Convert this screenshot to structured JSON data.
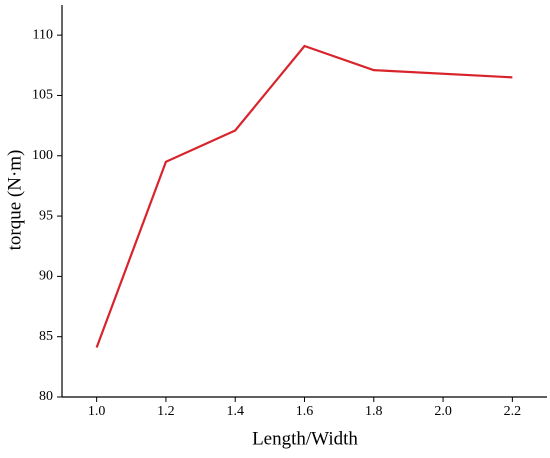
{
  "chart_data": {
    "type": "line",
    "x_label": "Length/Width",
    "y_label": "torque (N·m)",
    "x": [
      1.0,
      1.2,
      1.4,
      1.6,
      1.8,
      2.2
    ],
    "series": [
      {
        "color": "#d9232b",
        "values": [
          84.1,
          99.5,
          102.1,
          109.1,
          107.1,
          106.5
        ]
      }
    ],
    "xlim": [
      0.9,
      2.3
    ],
    "xticks": [
      {
        "value": 1.0,
        "label": "1.0"
      },
      {
        "value": 1.2,
        "label": "1.2"
      },
      {
        "value": 1.4,
        "label": "1.4"
      },
      {
        "value": 1.6,
        "label": "1.6"
      },
      {
        "value": 1.8,
        "label": "1.8"
      },
      {
        "value": 2.0,
        "label": "2.0"
      },
      {
        "value": 2.2,
        "label": "2.2"
      }
    ],
    "ylim": [
      80,
      112.5
    ],
    "yticks": [
      80,
      85,
      90,
      95,
      100,
      105,
      110
    ]
  }
}
